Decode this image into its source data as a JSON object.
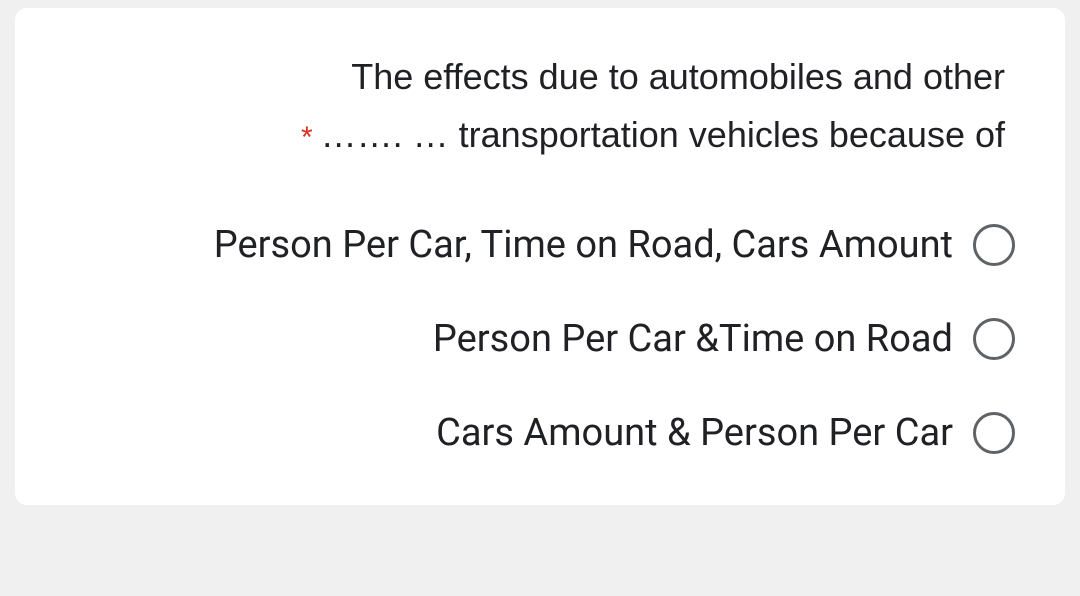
{
  "question": {
    "line1": "The effects due to automobiles and other",
    "line2_blank": "……. …",
    "line2_text": "transportation vehicles because of",
    "required_marker": "*"
  },
  "options": [
    {
      "label": "Person Per Car, Time on Road, Cars Amount"
    },
    {
      "label": "Person Per Car &Time on Road"
    },
    {
      "label": "Cars Amount & Person Per Car"
    }
  ]
}
